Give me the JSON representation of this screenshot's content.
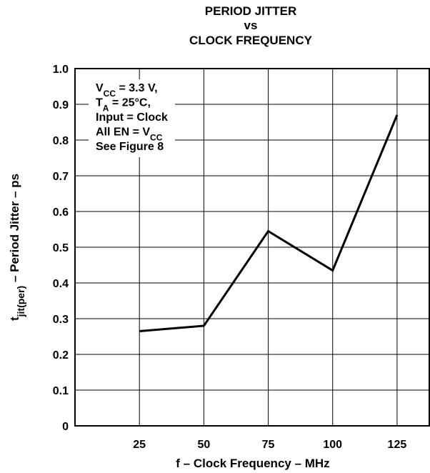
{
  "chart_data": {
    "type": "line",
    "title_lines": [
      "PERIOD JITTER",
      "vs",
      "CLOCK FREQUENCY"
    ],
    "xlabel": "f – Clock Frequency – MHz",
    "ylabel": {
      "main": "t",
      "sub": "jit(per)",
      "rest": "  – Period Jitter – ps"
    },
    "x_tick_labels": [
      "25",
      "50",
      "75",
      "100",
      "125"
    ],
    "y_tick_labels": [
      "0",
      "0.1",
      "0.2",
      "0.3",
      "0.4",
      "0.5",
      "0.6",
      "0.7",
      "0.8",
      "0.9",
      "1.0"
    ],
    "xlim": [
      0,
      137.5
    ],
    "ylim": [
      0,
      1.0
    ],
    "grid": true,
    "x": [
      25,
      50,
      75,
      100,
      125
    ],
    "series": [
      {
        "values": [
          0.265,
          0.28,
          0.545,
          0.435,
          0.87
        ]
      }
    ],
    "annotation": [
      {
        "parts": [
          {
            "t": "V"
          },
          {
            "t": "CC",
            "sub": true
          },
          {
            "t": " = 3.3 V,"
          }
        ]
      },
      {
        "parts": [
          {
            "t": "T"
          },
          {
            "t": "A",
            "sub": true
          },
          {
            "t": " = 25°C,"
          }
        ]
      },
      {
        "parts": [
          {
            "t": "Input = Clock"
          }
        ]
      },
      {
        "parts": [
          {
            "t": "All EN = V"
          },
          {
            "t": "CC",
            "sub": true
          }
        ]
      },
      {
        "parts": [
          {
            "t": "See Figure 8"
          }
        ]
      }
    ]
  }
}
